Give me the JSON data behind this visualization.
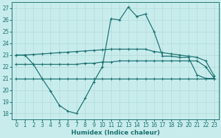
{
  "xlabel": "Humidex (Indice chaleur)",
  "bg_color": "#c8ecec",
  "grid_color": "#b0d8d8",
  "line_color": "#1a7070",
  "xlim": [
    -0.5,
    23.5
  ],
  "ylim": [
    17.5,
    27.5
  ],
  "yticks": [
    18,
    19,
    20,
    21,
    22,
    23,
    24,
    25,
    26,
    27
  ],
  "xticks": [
    0,
    1,
    2,
    3,
    4,
    5,
    6,
    7,
    8,
    9,
    10,
    11,
    12,
    13,
    14,
    15,
    16,
    17,
    18,
    19,
    20,
    21,
    22,
    23
  ],
  "line1_x": [
    0,
    1,
    2,
    3,
    4,
    5,
    6,
    7,
    8,
    9,
    10,
    11,
    12,
    13,
    14,
    15,
    16,
    17,
    18,
    19,
    20,
    21,
    22,
    23
  ],
  "line1_y": [
    23.0,
    23.0,
    22.2,
    21.0,
    19.9,
    18.7,
    18.2,
    18.0,
    19.3,
    20.7,
    22.0,
    26.1,
    26.0,
    27.1,
    26.3,
    26.5,
    25.0,
    22.9,
    22.9,
    22.8,
    22.8,
    21.3,
    21.0,
    21.0
  ],
  "line2_x": [
    0,
    1,
    2,
    3,
    4,
    5,
    6,
    7,
    8,
    9,
    10,
    11,
    12,
    13,
    14,
    15,
    16,
    17,
    18,
    19,
    20,
    21,
    22,
    23
  ],
  "line2_y": [
    23.0,
    23.0,
    23.05,
    23.1,
    23.15,
    23.2,
    23.25,
    23.3,
    23.35,
    23.4,
    23.45,
    23.5,
    23.5,
    23.5,
    23.5,
    23.5,
    23.3,
    23.2,
    23.1,
    23.0,
    22.9,
    22.8,
    22.5,
    21.2
  ],
  "line3_x": [
    0,
    1,
    2,
    3,
    4,
    5,
    6,
    7,
    8,
    9,
    10,
    11,
    12,
    13,
    14,
    15,
    16,
    17,
    18,
    19,
    20,
    21,
    22,
    23
  ],
  "line3_y": [
    22.2,
    22.2,
    22.2,
    22.2,
    22.2,
    22.2,
    22.2,
    22.2,
    22.3,
    22.3,
    22.4,
    22.4,
    22.5,
    22.5,
    22.5,
    22.5,
    22.5,
    22.5,
    22.5,
    22.5,
    22.5,
    22.5,
    22.0,
    21.0
  ],
  "line4_x": [
    0,
    1,
    2,
    3,
    4,
    5,
    6,
    7,
    8,
    9,
    10,
    11,
    12,
    13,
    14,
    15,
    16,
    17,
    18,
    19,
    20,
    21,
    22,
    23
  ],
  "line4_y": [
    21.0,
    21.0,
    21.0,
    21.0,
    21.0,
    21.0,
    21.0,
    21.0,
    21.0,
    21.0,
    21.0,
    21.0,
    21.0,
    21.0,
    21.0,
    21.0,
    21.0,
    21.0,
    21.0,
    21.0,
    21.0,
    21.0,
    21.0,
    21.0
  ]
}
